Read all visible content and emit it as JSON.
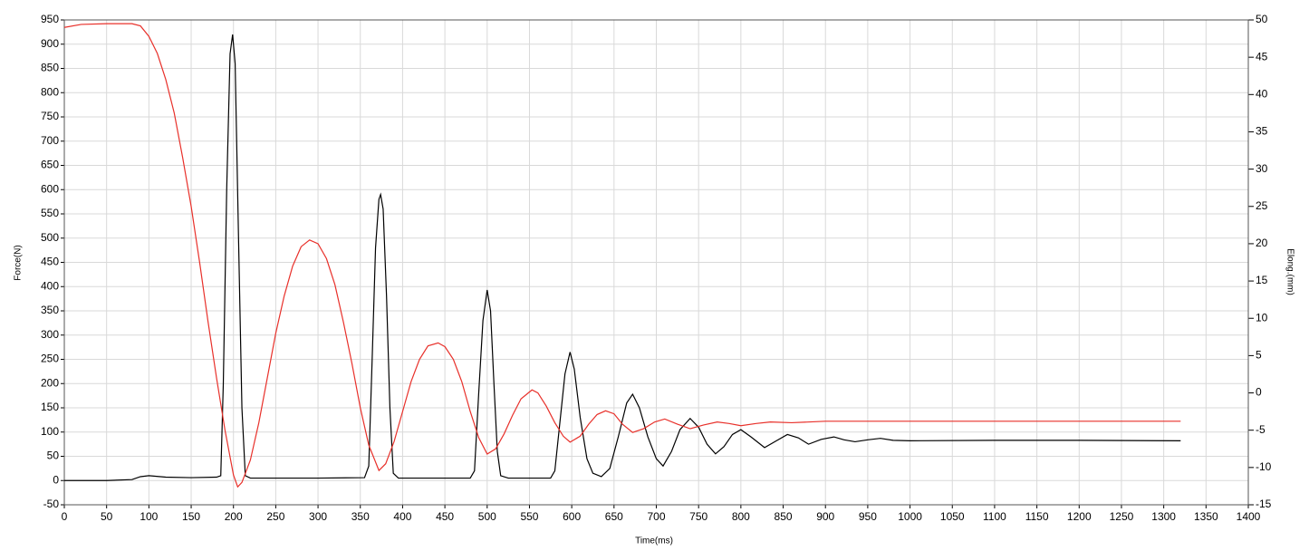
{
  "chart_data": {
    "type": "line",
    "xlabel": "Time(ms)",
    "ylabel": "Force(N)",
    "y2label": "Elong.(mm)",
    "xlim": [
      0,
      1400
    ],
    "ylim": [
      -50,
      950
    ],
    "y2lim": [
      -15,
      50
    ],
    "grid": true,
    "xticks": [
      0,
      50,
      100,
      150,
      200,
      250,
      300,
      350,
      400,
      450,
      500,
      550,
      600,
      650,
      700,
      750,
      800,
      850,
      900,
      950,
      1000,
      1050,
      1100,
      1150,
      1200,
      1250,
      1300,
      1350,
      1400
    ],
    "yticks": [
      -50,
      0,
      50,
      100,
      150,
      200,
      250,
      300,
      350,
      400,
      450,
      500,
      550,
      600,
      650,
      700,
      750,
      800,
      850,
      900,
      950
    ],
    "y2ticks": [
      -15,
      -10,
      -5,
      0,
      5,
      10,
      15,
      20,
      25,
      30,
      35,
      40,
      45,
      50
    ],
    "series": [
      {
        "name": "Force",
        "color": "#000000",
        "axis": "y",
        "x": [
          0,
          50,
          80,
          90,
          100,
          120,
          150,
          180,
          185,
          188,
          192,
          196,
          199,
          202,
          206,
          210,
          214,
          220,
          300,
          355,
          360,
          364,
          368,
          372,
          374,
          377,
          381,
          385,
          389,
          395,
          480,
          485,
          490,
          495,
          500,
          504,
          508,
          512,
          516,
          525,
          575,
          580,
          586,
          592,
          598,
          603,
          610,
          618,
          625,
          635,
          645,
          655,
          665,
          672,
          680,
          690,
          700,
          708,
          718,
          728,
          740,
          750,
          760,
          770,
          780,
          790,
          800,
          812,
          828,
          842,
          855,
          868,
          880,
          895,
          910,
          922,
          935,
          950,
          965,
          980,
          1000,
          1100,
          1200,
          1320
        ],
        "values": [
          0,
          0,
          2,
          8,
          10,
          7,
          6,
          7,
          10,
          200,
          600,
          880,
          920,
          860,
          500,
          150,
          10,
          5,
          5,
          6,
          30,
          250,
          480,
          580,
          590,
          560,
          380,
          150,
          15,
          5,
          5,
          20,
          180,
          330,
          393,
          350,
          200,
          60,
          10,
          5,
          5,
          20,
          120,
          220,
          265,
          230,
          130,
          45,
          15,
          8,
          25,
          90,
          160,
          178,
          150,
          90,
          45,
          30,
          60,
          105,
          128,
          110,
          75,
          55,
          70,
          95,
          105,
          90,
          68,
          82,
          95,
          88,
          75,
          85,
          90,
          84,
          80,
          84,
          87,
          83,
          82,
          83,
          83,
          82
        ]
      },
      {
        "name": "Elong",
        "color": "#e8302a",
        "axis": "y2",
        "x": [
          0,
          20,
          50,
          80,
          90,
          100,
          110,
          120,
          130,
          140,
          150,
          160,
          170,
          180,
          190,
          200,
          205,
          210,
          220,
          230,
          240,
          250,
          260,
          270,
          280,
          290,
          300,
          310,
          320,
          330,
          340,
          350,
          360,
          372,
          380,
          390,
          400,
          410,
          420,
          430,
          442,
          450,
          460,
          470,
          480,
          490,
          500,
          510,
          520,
          530,
          540,
          553,
          560,
          570,
          580,
          590,
          598,
          610,
          620,
          630,
          640,
          650,
          660,
          672,
          685,
          698,
          710,
          725,
          740,
          756,
          772,
          786,
          800,
          818,
          835,
          860,
          900,
          1000,
          1100,
          1200,
          1320
        ],
        "values": [
          49,
          49.4,
          49.5,
          49.5,
          49.2,
          47.8,
          45.5,
          42,
          37.5,
          31.5,
          25,
          17.5,
          9.5,
          2,
          -5,
          -11,
          -12.6,
          -12,
          -9,
          -4,
          2,
          8,
          13,
          17,
          19.6,
          20.5,
          20,
          18,
          14.5,
          9.5,
          4,
          -2,
          -7,
          -10.4,
          -9.5,
          -6.5,
          -2.5,
          1.5,
          4.5,
          6.3,
          6.7,
          6.2,
          4.5,
          1.5,
          -2.5,
          -6,
          -8.2,
          -7.5,
          -5.5,
          -3,
          -0.8,
          0.4,
          0,
          -1.8,
          -4,
          -5.8,
          -6.6,
          -5.8,
          -4.2,
          -2.9,
          -2.4,
          -2.8,
          -4.2,
          -5.3,
          -4.8,
          -3.9,
          -3.5,
          -4.2,
          -4.8,
          -4.3,
          -3.9,
          -4.1,
          -4.4,
          -4.1,
          -3.9,
          -4,
          -3.8,
          -3.8,
          -3.8,
          -3.8,
          -3.8
        ]
      }
    ]
  }
}
